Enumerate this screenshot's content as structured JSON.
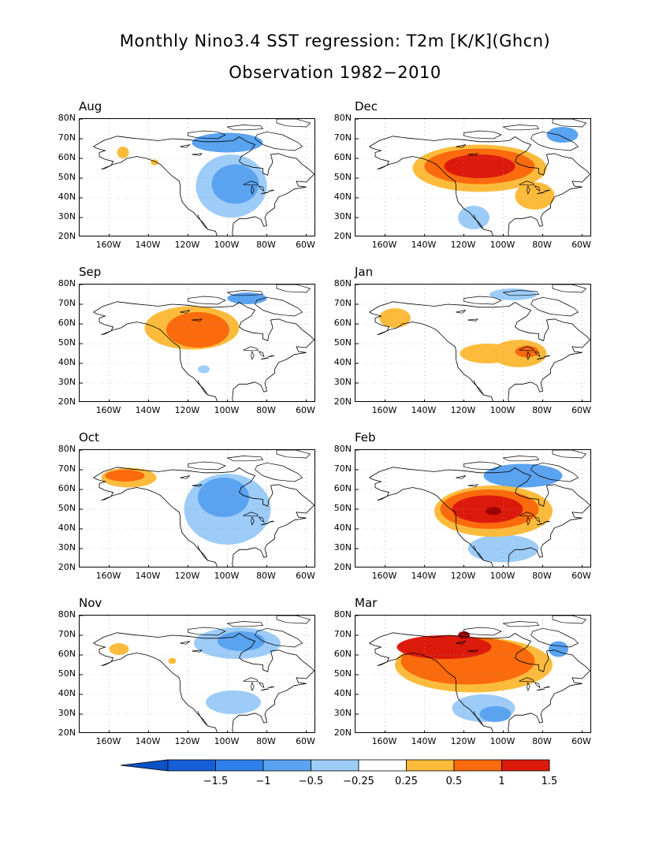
{
  "title": "Monthly Nino3.4 SST regression: T2m [K/K](Ghcn)",
  "subtitle": "Observation 1982−2010",
  "lat_labels": [
    "80N",
    "70N",
    "60N",
    "50N",
    "40N",
    "30N",
    "20N"
  ],
  "lon_labels": [
    "160W",
    "140W",
    "120W",
    "100W",
    "80W",
    "60W"
  ],
  "colors": {
    "n1_5": "#1560d8",
    "n1": "#2f80ea",
    "n0_5": "#5aa3f0",
    "n0_25": "#9dccf8",
    "zero": "#ffffff",
    "p0_25": "#fdbb3c",
    "p0_5": "#fb6a0c",
    "p1": "#dc1a0c",
    "p1_5": "#9c0000"
  },
  "colorbar": {
    "labels": [
      "−1.5",
      "−1",
      "−0.5",
      "−0.25",
      "0.25",
      "0.5",
      "1",
      "1.5"
    ]
  },
  "panels": [
    {
      "label": "Aug",
      "blobs": [
        {
          "c": "n0_25",
          "lon": -98,
          "lat": 46,
          "rx": 18,
          "ry": 16
        },
        {
          "c": "n0_5",
          "lon": -96,
          "lat": 47,
          "rx": 12,
          "ry": 10
        },
        {
          "c": "n0_5",
          "lon": -100,
          "lat": 68,
          "rx": 18,
          "ry": 5
        },
        {
          "c": "p0_25",
          "lon": -153,
          "lat": 63,
          "rx": 3,
          "ry": 3
        },
        {
          "c": "p0_25",
          "lon": -137,
          "lat": 58,
          "rx": 2,
          "ry": 1.5
        }
      ]
    },
    {
      "label": "Dec",
      "blobs": [
        {
          "c": "n0_25",
          "lon": -115,
          "lat": 30,
          "rx": 8,
          "ry": 6
        },
        {
          "c": "p0_25",
          "lon": -112,
          "lat": 55,
          "rx": 34,
          "ry": 12
        },
        {
          "c": "p0_25",
          "lon": -84,
          "lat": 41,
          "rx": 10,
          "ry": 7
        },
        {
          "c": "p0_5",
          "lon": -112,
          "lat": 56,
          "rx": 28,
          "ry": 9
        },
        {
          "c": "p1",
          "lon": -112,
          "lat": 56,
          "rx": 18,
          "ry": 6
        },
        {
          "c": "n0_5",
          "lon": -70,
          "lat": 72,
          "rx": 8,
          "ry": 4
        }
      ]
    },
    {
      "label": "Sep",
      "blobs": [
        {
          "c": "p0_25",
          "lon": -118,
          "lat": 58,
          "rx": 24,
          "ry": 11
        },
        {
          "c": "p0_5",
          "lon": -115,
          "lat": 57,
          "rx": 16,
          "ry": 9
        },
        {
          "c": "n0_25",
          "lon": -112,
          "lat": 37,
          "rx": 3,
          "ry": 2
        },
        {
          "c": "n0_5",
          "lon": -90,
          "lat": 73,
          "rx": 10,
          "ry": 3
        }
      ]
    },
    {
      "label": "Jan",
      "blobs": [
        {
          "c": "p0_25",
          "lon": -155,
          "lat": 63,
          "rx": 8,
          "ry": 5
        },
        {
          "c": "p0_25",
          "lon": -108,
          "lat": 45,
          "rx": 14,
          "ry": 5
        },
        {
          "c": "p0_25",
          "lon": -92,
          "lat": 45,
          "rx": 14,
          "ry": 7
        },
        {
          "c": "p0_5",
          "lon": -88,
          "lat": 46,
          "rx": 6,
          "ry": 3
        },
        {
          "c": "n0_25",
          "lon": -95,
          "lat": 75,
          "rx": 12,
          "ry": 3
        }
      ]
    },
    {
      "label": "Oct",
      "blobs": [
        {
          "c": "n0_25",
          "lon": -100,
          "lat": 50,
          "rx": 22,
          "ry": 18
        },
        {
          "c": "n0_5",
          "lon": -102,
          "lat": 56,
          "rx": 13,
          "ry": 10
        },
        {
          "c": "p0_25",
          "lon": -150,
          "lat": 66,
          "rx": 14,
          "ry": 5
        },
        {
          "c": "p0_5",
          "lon": -152,
          "lat": 67,
          "rx": 10,
          "ry": 3
        }
      ]
    },
    {
      "label": "Feb",
      "blobs": [
        {
          "c": "n0_25",
          "lon": -100,
          "lat": 30,
          "rx": 18,
          "ry": 7
        },
        {
          "c": "n0_5",
          "lon": -90,
          "lat": 67,
          "rx": 20,
          "ry": 6
        },
        {
          "c": "p0_25",
          "lon": -105,
          "lat": 49,
          "rx": 30,
          "ry": 13
        },
        {
          "c": "p0_5",
          "lon": -107,
          "lat": 50,
          "rx": 25,
          "ry": 10
        },
        {
          "c": "p1",
          "lon": -108,
          "lat": 50,
          "rx": 18,
          "ry": 7
        },
        {
          "c": "p1_5",
          "lon": -105,
          "lat": 49,
          "rx": 4,
          "ry": 2
        }
      ]
    },
    {
      "label": "Nov",
      "blobs": [
        {
          "c": "n0_25",
          "lon": -97,
          "lat": 36,
          "rx": 14,
          "ry": 6
        },
        {
          "c": "n0_25",
          "lon": -95,
          "lat": 66,
          "rx": 22,
          "ry": 8
        },
        {
          "c": "n0_5",
          "lon": -93,
          "lat": 67,
          "rx": 12,
          "ry": 5
        },
        {
          "c": "p0_25",
          "lon": -155,
          "lat": 63,
          "rx": 5,
          "ry": 3
        },
        {
          "c": "p0_25",
          "lon": -128,
          "lat": 57,
          "rx": 2,
          "ry": 1.5
        }
      ]
    },
    {
      "label": "Mar",
      "blobs": [
        {
          "c": "n0_25",
          "lon": -110,
          "lat": 33,
          "rx": 16,
          "ry": 7
        },
        {
          "c": "n0_5",
          "lon": -104,
          "lat": 30,
          "rx": 8,
          "ry": 4
        },
        {
          "c": "p0_25",
          "lon": -115,
          "lat": 55,
          "rx": 40,
          "ry": 14
        },
        {
          "c": "p0_5",
          "lon": -118,
          "lat": 57,
          "rx": 34,
          "ry": 12
        },
        {
          "c": "p1",
          "lon": -130,
          "lat": 64,
          "rx": 24,
          "ry": 6
        },
        {
          "c": "p1_5",
          "lon": -120,
          "lat": 70,
          "rx": 3,
          "ry": 2
        },
        {
          "c": "n0_5",
          "lon": -72,
          "lat": 63,
          "rx": 5,
          "ry": 4
        }
      ]
    }
  ]
}
